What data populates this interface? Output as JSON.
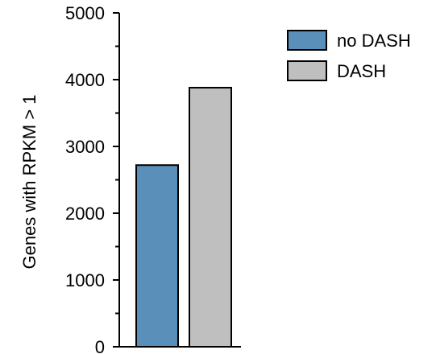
{
  "chart_data": {
    "type": "bar",
    "title": "",
    "xlabel": "",
    "ylabel": "Genes with RPKM > 1",
    "ylim": [
      0,
      5000
    ],
    "yticks": [
      0,
      1000,
      2000,
      3000,
      4000,
      5000
    ],
    "ytick_labels": [
      "0",
      "1000",
      "2000",
      "3000",
      "4000",
      "5000"
    ],
    "grid": false,
    "legend_position": "top-right",
    "series": [
      {
        "name": "no DASH",
        "value": 2720,
        "color": "#5a8fba"
      },
      {
        "name": "DASH",
        "value": 3880,
        "color": "#bfbfbf"
      }
    ]
  }
}
